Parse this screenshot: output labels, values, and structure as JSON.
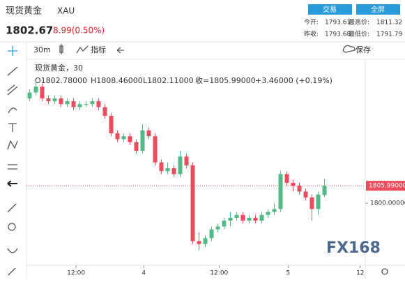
{
  "header": {
    "name": "现货黄金",
    "symbol": "XAU",
    "price": "1802.67",
    "change": "8.99(0.50%)",
    "trade_button": "交易",
    "fullscreen_button": "全屏",
    "stats": [
      [
        "今开:",
        "1793.61"
      ],
      [
        "最高价:",
        "1811.32"
      ],
      [
        "昨收:",
        "1793.68"
      ],
      [
        "最低价:",
        "1791.79"
      ]
    ]
  },
  "toolbar": {
    "interval": "30m",
    "indicators": "指标",
    "save": "保存"
  },
  "legend": {
    "title": "现货黄金，30",
    "open": "O1802.78000",
    "high": "H1808.46000",
    "low": "L1802.11000",
    "close": "收=1805.99000",
    "change": "+3.46000 (+0.19%)"
  },
  "watermark": "FX168",
  "chart_data": {
    "type": "candlestick",
    "x": [
      0,
      1,
      2,
      3,
      4,
      5,
      6,
      7,
      8,
      9,
      10,
      11,
      12,
      13,
      14,
      15,
      16,
      17,
      18,
      19,
      20,
      21,
      22,
      23,
      24,
      25,
      26,
      27,
      28,
      29,
      30,
      31,
      32,
      33,
      34,
      35,
      36,
      37,
      38,
      39,
      40,
      41,
      42,
      43,
      44,
      45,
      46,
      47
    ],
    "open": [
      1836,
      1838,
      1840,
      1836,
      1835,
      1836,
      1834,
      1835,
      1833,
      1834,
      1834,
      1835,
      1833,
      1830,
      1824,
      1822,
      1823,
      1821,
      1818,
      1825,
      1823,
      1814,
      1811,
      1812,
      1810,
      1816,
      1813,
      1787,
      1786,
      1788,
      1791,
      1792,
      1794,
      1795,
      1796,
      1794,
      1795,
      1794,
      1796,
      1797,
      1798,
      1810,
      1807,
      1806,
      1804,
      1802,
      1798,
      1802.78
    ],
    "high": [
      1839,
      1842,
      1841,
      1837,
      1837,
      1837,
      1836,
      1836,
      1835,
      1835,
      1836,
      1836,
      1834,
      1831,
      1825,
      1824,
      1824,
      1822,
      1827,
      1826,
      1824,
      1815,
      1814,
      1813,
      1818,
      1817,
      1814,
      1790,
      1789,
      1792,
      1793,
      1795,
      1797,
      1797,
      1797,
      1796,
      1796,
      1797,
      1798,
      1800,
      1811,
      1811,
      1808,
      1807,
      1805,
      1803,
      1804,
      1808.46
    ],
    "low": [
      1835,
      1837,
      1835,
      1834,
      1834,
      1833,
      1833,
      1832,
      1832,
      1833,
      1833,
      1832,
      1829,
      1823,
      1821,
      1821,
      1820,
      1817,
      1817,
      1822,
      1813,
      1810,
      1810,
      1809,
      1809,
      1812,
      1786,
      1784,
      1785,
      1787,
      1790,
      1791,
      1792,
      1794,
      1793,
      1793,
      1793,
      1793,
      1795,
      1796,
      1797,
      1806,
      1804,
      1803,
      1801,
      1794,
      1796,
      1802.11
    ],
    "close": [
      1838,
      1840,
      1836,
      1835,
      1836,
      1834,
      1835,
      1833,
      1834,
      1834,
      1835,
      1833,
      1830,
      1824,
      1822,
      1823,
      1821,
      1818,
      1825,
      1823,
      1814,
      1811,
      1812,
      1810,
      1816,
      1813,
      1787,
      1786,
      1788,
      1791,
      1792,
      1794,
      1795,
      1796,
      1794,
      1795,
      1794,
      1796,
      1797,
      1798,
      1810,
      1807,
      1806,
      1804,
      1802,
      1798,
      1803,
      1805.99
    ],
    "up_color": "#53b987",
    "down_color": "#eb4d5c",
    "xlim": [
      -0.5,
      53.5
    ],
    "xticks": [
      {
        "value": 7.4,
        "label": "12:00"
      },
      {
        "value": 18.2,
        "label": "4"
      },
      {
        "value": 30.2,
        "label": "12:00"
      },
      {
        "value": 41.2,
        "label": "5"
      },
      {
        "value": 52.7,
        "label": "12"
      }
    ],
    "ylim": [
      1778.7,
      1847
    ],
    "yticks": [
      {
        "value": 1800,
        "label": "1800.00000"
      }
    ],
    "last_price": {
      "value": 1805.99,
      "label": "1805.99000"
    }
  }
}
